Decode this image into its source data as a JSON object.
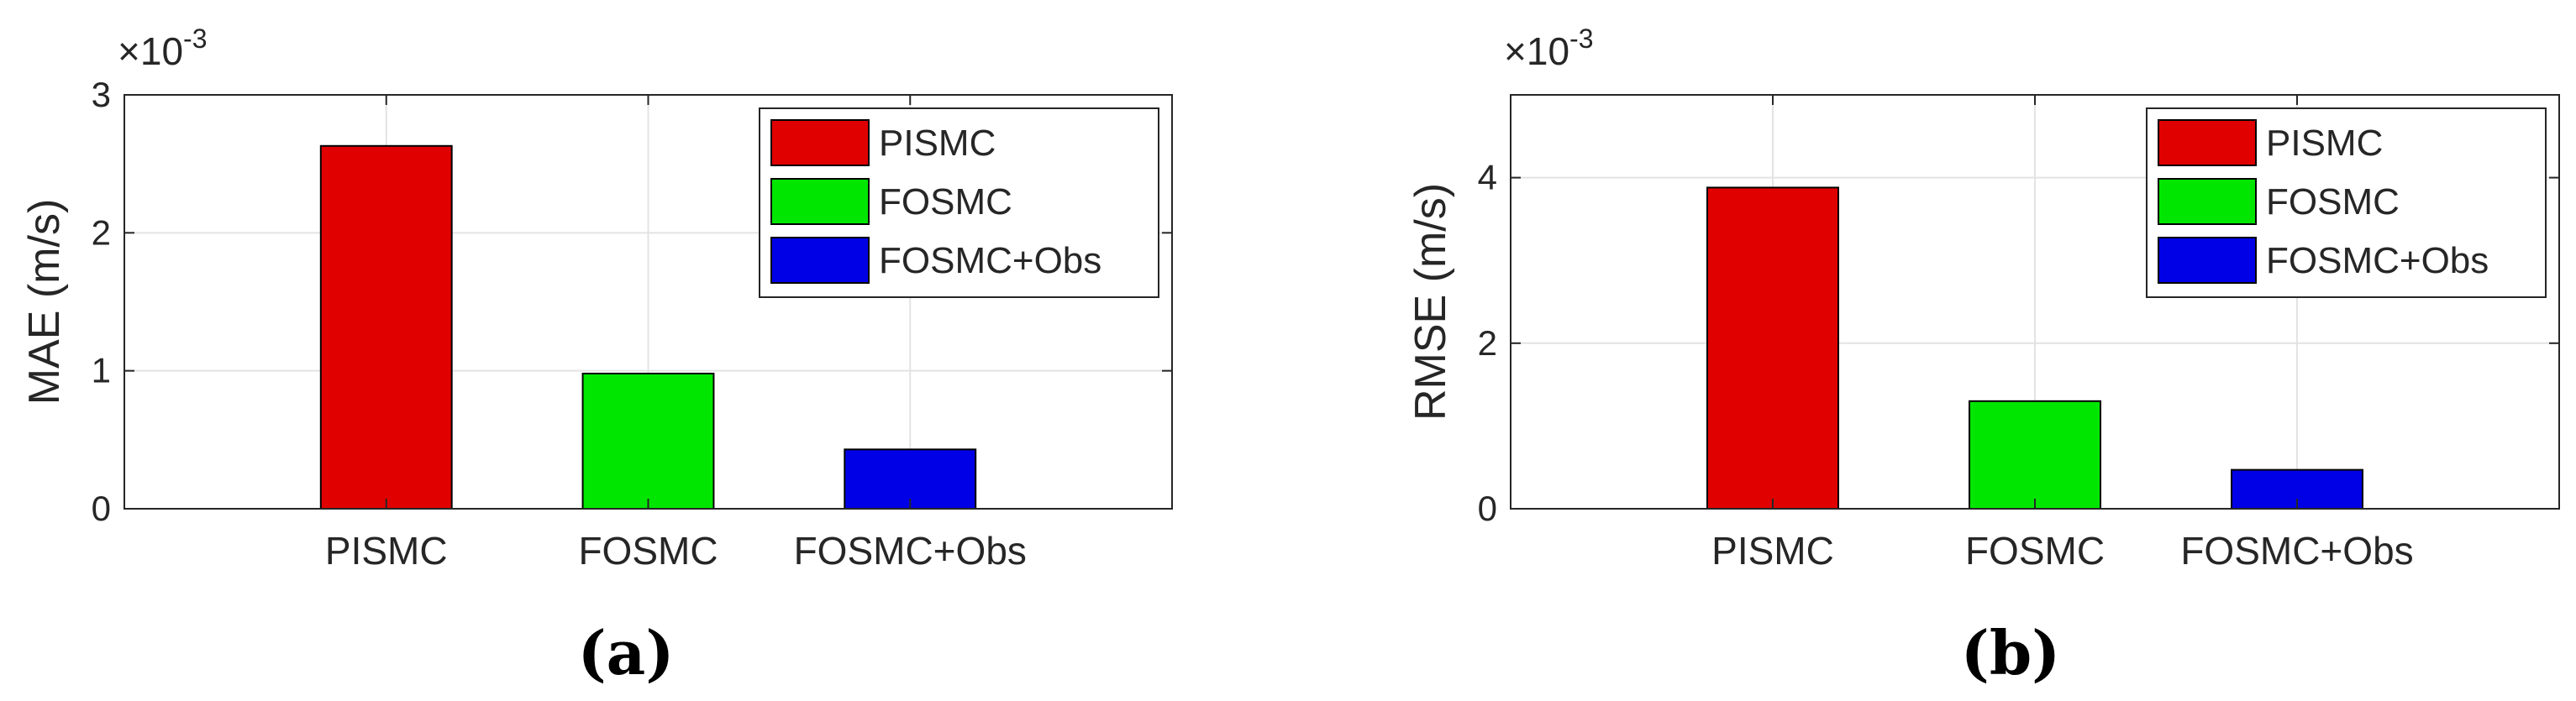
{
  "colors": {
    "PISMC": "#e00000",
    "FOSMC": "#00e600",
    "FOSMC+Obs": "#0000e6",
    "grid": "#e3e3e3",
    "axis": "#262626"
  },
  "chart_data": [
    {
      "type": "bar",
      "panel_label": "(a)",
      "categories": [
        "PISMC",
        "FOSMC",
        "FOSMC+Obs"
      ],
      "values": [
        0.00263,
        0.00098,
        0.00043
      ],
      "ylabel": "MAE (m/s)",
      "y_multiplier": "×10",
      "y_multiplier_exp": "-3",
      "ylim": [
        0,
        0.003
      ],
      "yticks": [
        0,
        0.001,
        0.002,
        0.003
      ],
      "ytick_labels": [
        "0",
        "1",
        "2",
        "3"
      ],
      "grid": true,
      "legend": [
        "PISMC",
        "FOSMC",
        "FOSMC+Obs"
      ],
      "legend_position": "top-right"
    },
    {
      "type": "bar",
      "panel_label": "(b)",
      "categories": [
        "PISMC",
        "FOSMC",
        "FOSMC+Obs"
      ],
      "values": [
        0.00388,
        0.0013,
        0.00047
      ],
      "ylabel": "RMSE (m/s)",
      "y_multiplier": "×10",
      "y_multiplier_exp": "-3",
      "ylim": [
        0,
        0.005
      ],
      "yticks": [
        0,
        0.002,
        0.004
      ],
      "ytick_labels": [
        "0",
        "2",
        "4"
      ],
      "grid": true,
      "legend": [
        "PISMC",
        "FOSMC",
        "FOSMC+Obs"
      ],
      "legend_position": "top-right"
    }
  ]
}
